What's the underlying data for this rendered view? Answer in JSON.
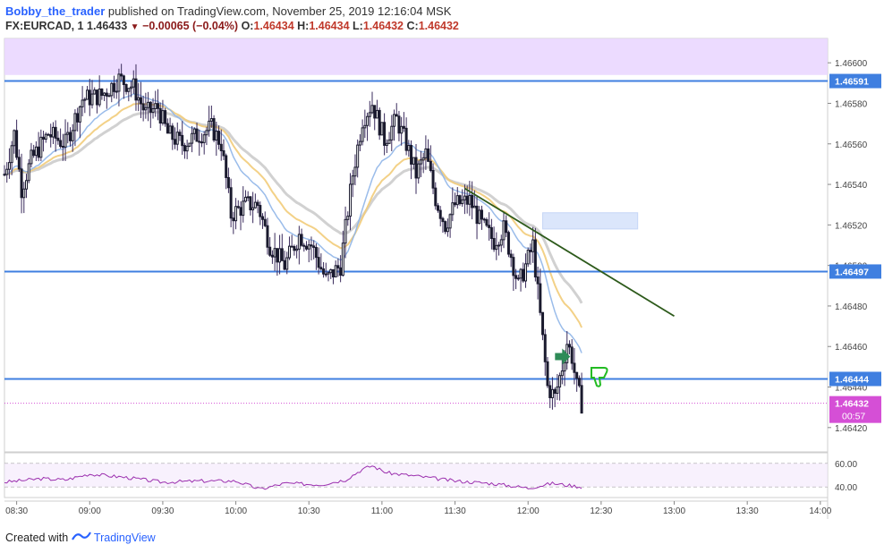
{
  "header": {
    "author": "Bobby_the_trader",
    "published": "published on TradingView.com, November 25, 2019 12:16:04 MSK",
    "symbol": "FX:EURCAD, 1",
    "last": "1.46433",
    "change": "−0.00065 (−0.04%)",
    "o_label": "O:",
    "o_value": "1.46434",
    "h_label": "H:",
    "h_value": "1.46434",
    "l_label": "L:",
    "l_value": "1.46432",
    "c_label": "C:",
    "c_value": "1.46432"
  },
  "footer": {
    "created_with": "Created with",
    "brand": "TradingView"
  },
  "colors": {
    "candle_outline": "#1a1a2e",
    "candle_body": "#ffffff",
    "wick": "#3a2b5c",
    "hline": "#3f7fe0",
    "zone": "#e9d5ff",
    "ema_fast": "#8fb5e8",
    "ema_mid": "#f2cc7a",
    "ema_slow": "#cccccc",
    "trendline": "#2d5a1b",
    "rsi": "#9b2fae",
    "price_tag": "#3f7fe0",
    "current_tag": "#d54fd6",
    "arrow_green": "#2e8b57",
    "thumb_green": "#22bb22"
  },
  "chart_data": {
    "type": "candlestick",
    "symbol": "FX:EURCAD",
    "interval": "1",
    "ylim": [
      1.46408,
      1.46612
    ],
    "y_ticks": [
      1.4642,
      1.4644,
      1.4646,
      1.4648,
      1.465,
      1.4652,
      1.4654,
      1.4656,
      1.4658,
      1.466
    ],
    "y_tick_labels": [
      "1.46420",
      "1.46440",
      "1.46460",
      "1.46480",
      "1.46500",
      "1.46520",
      "1.46540",
      "1.46560",
      "1.46580",
      "1.46600"
    ],
    "x_ticks": [
      "08:30",
      "09:00",
      "09:30",
      "10:00",
      "10:30",
      "11:00",
      "11:30",
      "12:00",
      "12:30",
      "13:00",
      "13:30",
      "14:00"
    ],
    "x_tick_minutes": [
      510,
      540,
      570,
      600,
      630,
      660,
      690,
      720,
      750,
      780,
      810,
      840
    ],
    "xlim_minutes": [
      505,
      843
    ],
    "resistance_zone": [
      1.46594,
      1.46612
    ],
    "horizontal_levels": [
      {
        "price": 1.46591,
        "label": "1.46591"
      },
      {
        "price": 1.46497,
        "label": "1.46497"
      },
      {
        "price": 1.46444,
        "label": "1.46444"
      }
    ],
    "current_price": {
      "price": 1.46432,
      "label": "1.46432",
      "countdown": "00:57"
    },
    "target_box": {
      "t0": 726,
      "t1": 765,
      "p0": 1.46518,
      "p1": 1.46526
    },
    "trendline": {
      "t0": 694,
      "p0": 1.46538,
      "t1": 780,
      "p1": 1.46475
    },
    "anchors": [
      {
        "t": 505,
        "p": 1.46545
      },
      {
        "t": 509,
        "p": 1.46565
      },
      {
        "t": 512,
        "p": 1.46538
      },
      {
        "t": 516,
        "p": 1.46552
      },
      {
        "t": 523,
        "p": 1.46565
      },
      {
        "t": 530,
        "p": 1.4656
      },
      {
        "t": 537,
        "p": 1.46582
      },
      {
        "t": 545,
        "p": 1.46584
      },
      {
        "t": 552,
        "p": 1.46592
      },
      {
        "t": 558,
        "p": 1.46588
      },
      {
        "t": 563,
        "p": 1.46575
      },
      {
        "t": 568,
        "p": 1.46578
      },
      {
        "t": 572,
        "p": 1.46565
      },
      {
        "t": 578,
        "p": 1.4656
      },
      {
        "t": 584,
        "p": 1.46564
      },
      {
        "t": 590,
        "p": 1.46568
      },
      {
        "t": 594,
        "p": 1.4656
      },
      {
        "t": 598,
        "p": 1.46525
      },
      {
        "t": 604,
        "p": 1.4653
      },
      {
        "t": 609,
        "p": 1.4653
      },
      {
        "t": 614,
        "p": 1.4651
      },
      {
        "t": 620,
        "p": 1.465
      },
      {
        "t": 626,
        "p": 1.46515
      },
      {
        "t": 631,
        "p": 1.4651
      },
      {
        "t": 637,
        "p": 1.46493
      },
      {
        "t": 643,
        "p": 1.465
      },
      {
        "t": 648,
        "p": 1.46545
      },
      {
        "t": 652,
        "p": 1.46572
      },
      {
        "t": 656,
        "p": 1.4658
      },
      {
        "t": 661,
        "p": 1.46562
      },
      {
        "t": 666,
        "p": 1.46572
      },
      {
        "t": 670,
        "p": 1.4656
      },
      {
        "t": 674,
        "p": 1.46545
      },
      {
        "t": 678,
        "p": 1.46555
      },
      {
        "t": 682,
        "p": 1.46533
      },
      {
        "t": 686,
        "p": 1.4652
      },
      {
        "t": 690,
        "p": 1.4653
      },
      {
        "t": 696,
        "p": 1.46532
      },
      {
        "t": 701,
        "p": 1.4652
      },
      {
        "t": 706,
        "p": 1.46512
      },
      {
        "t": 710,
        "p": 1.46518
      },
      {
        "t": 713,
        "p": 1.46505
      },
      {
        "t": 716,
        "p": 1.4649
      },
      {
        "t": 719,
        "p": 1.465
      },
      {
        "t": 722,
        "p": 1.4651
      },
      {
        "t": 725,
        "p": 1.46475
      },
      {
        "t": 728,
        "p": 1.4644
      },
      {
        "t": 731,
        "p": 1.46435
      },
      {
        "t": 734,
        "p": 1.4645
      },
      {
        "t": 736,
        "p": 1.46462
      },
      {
        "t": 738,
        "p": 1.46455
      },
      {
        "t": 740,
        "p": 1.4644
      },
      {
        "t": 742,
        "p": 1.46432
      }
    ],
    "rsi": {
      "levels": [
        40,
        60
      ],
      "level_labels": [
        "40.00",
        "60.00"
      ],
      "ylim": [
        34,
        66
      ],
      "anchors": [
        {
          "t": 505,
          "v": 44
        },
        {
          "t": 520,
          "v": 47
        },
        {
          "t": 530,
          "v": 46
        },
        {
          "t": 540,
          "v": 51
        },
        {
          "t": 555,
          "v": 48
        },
        {
          "t": 570,
          "v": 44
        },
        {
          "t": 585,
          "v": 45
        },
        {
          "t": 600,
          "v": 45
        },
        {
          "t": 610,
          "v": 38
        },
        {
          "t": 620,
          "v": 43
        },
        {
          "t": 635,
          "v": 42
        },
        {
          "t": 645,
          "v": 46
        },
        {
          "t": 652,
          "v": 55
        },
        {
          "t": 656,
          "v": 58
        },
        {
          "t": 662,
          "v": 52
        },
        {
          "t": 675,
          "v": 49
        },
        {
          "t": 690,
          "v": 45
        },
        {
          "t": 705,
          "v": 43
        },
        {
          "t": 720,
          "v": 39
        },
        {
          "t": 730,
          "v": 43
        },
        {
          "t": 742,
          "v": 40
        }
      ]
    }
  }
}
